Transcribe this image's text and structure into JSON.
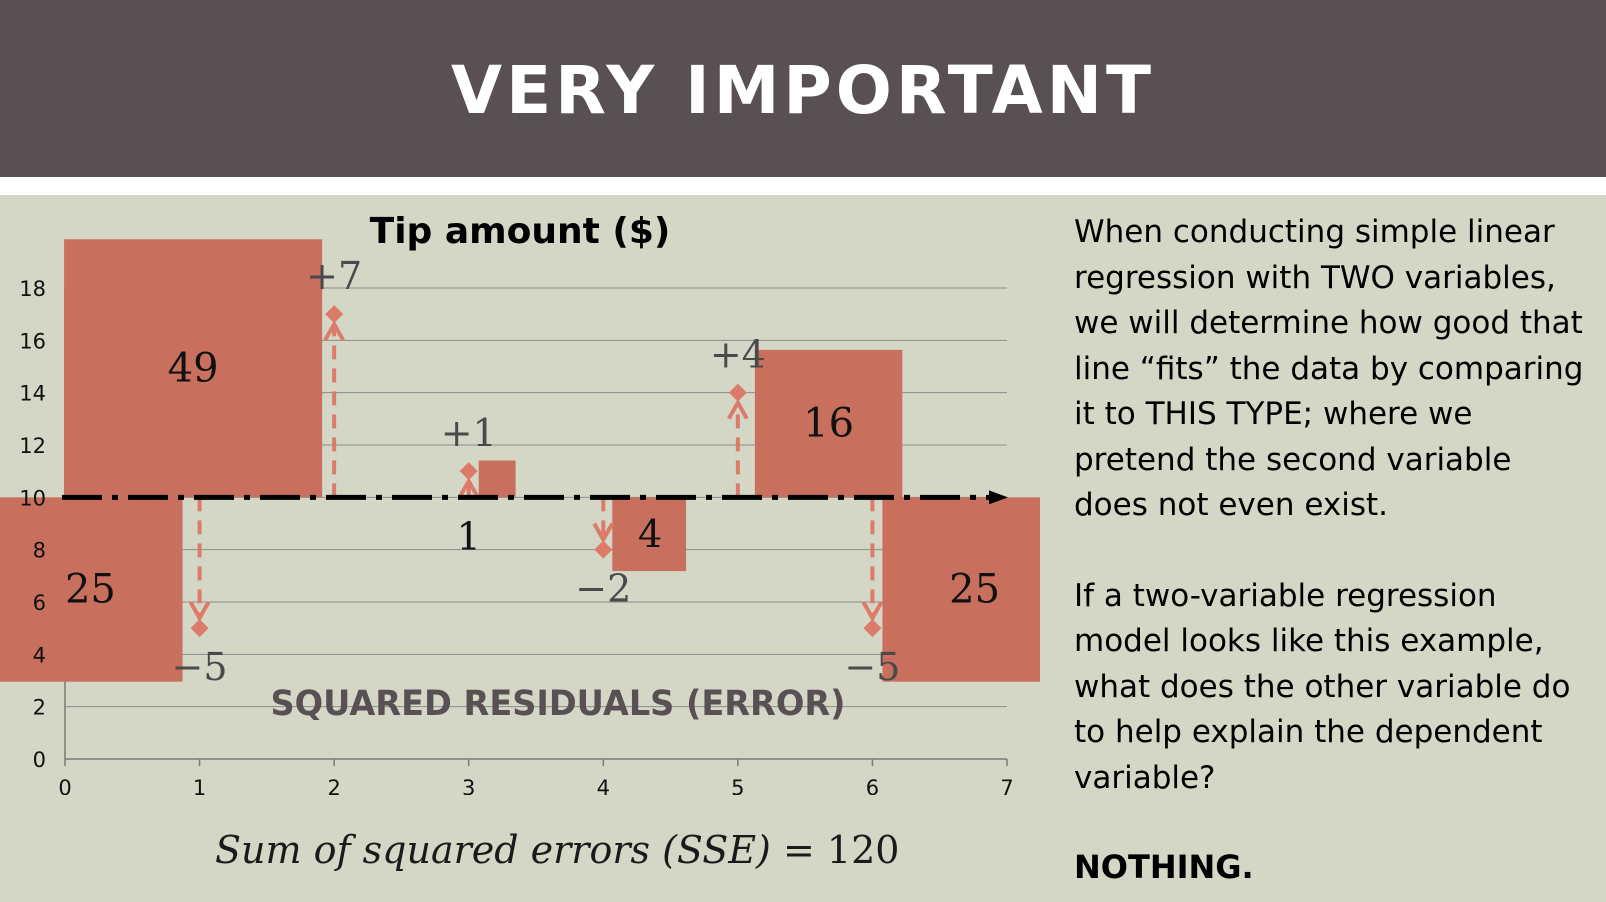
{
  "slide": {
    "title": "VERY IMPORTANT",
    "paragraph1": "When conducting simple linear regression with TWO variables, we will determine how good that line “fits” the data by comparing it to THIS TYPE; where we pretend the second variable does not even exist.",
    "paragraph2": "If a two-variable regression model looks like this example, what does the other variable do to help explain the dependent variable?",
    "answer": "NOTHING.",
    "sse_label": "Sum of squared errors (SSE)",
    "sse_equals": "= 120"
  },
  "colors": {
    "header_bg": "#595053",
    "slide_bg": "#d4d7c6",
    "square_fill": "#c8705d",
    "residual_line": "#dc7b6a",
    "mean_line": "#000000"
  },
  "chart_data": {
    "type": "scatter",
    "title": "Tip amount ($)",
    "overlay_label": "SQUARED RESIDUALS (ERROR)",
    "xlim": [
      0,
      7
    ],
    "ylim": [
      0,
      18
    ],
    "x_ticks": [
      "0",
      "1",
      "2",
      "3",
      "4",
      "5",
      "6",
      "7"
    ],
    "y_ticks": [
      "0",
      "2",
      "4",
      "6",
      "8",
      "10",
      "12",
      "14",
      "16",
      "18"
    ],
    "grid": true,
    "mean_line_y": 10,
    "points": [
      {
        "x": 1,
        "y": 5,
        "residual_label": "−5",
        "square_label": "25"
      },
      {
        "x": 2,
        "y": 17,
        "residual_label": "+7",
        "square_label": "49"
      },
      {
        "x": 3,
        "y": 11,
        "residual_label": "+1",
        "square_label": "1"
      },
      {
        "x": 4,
        "y": 8,
        "residual_label": "−2",
        "square_label": "4"
      },
      {
        "x": 5,
        "y": 14,
        "residual_label": "+4",
        "square_label": "16"
      },
      {
        "x": 6,
        "y": 5,
        "residual_label": "−5",
        "square_label": "25"
      }
    ]
  }
}
